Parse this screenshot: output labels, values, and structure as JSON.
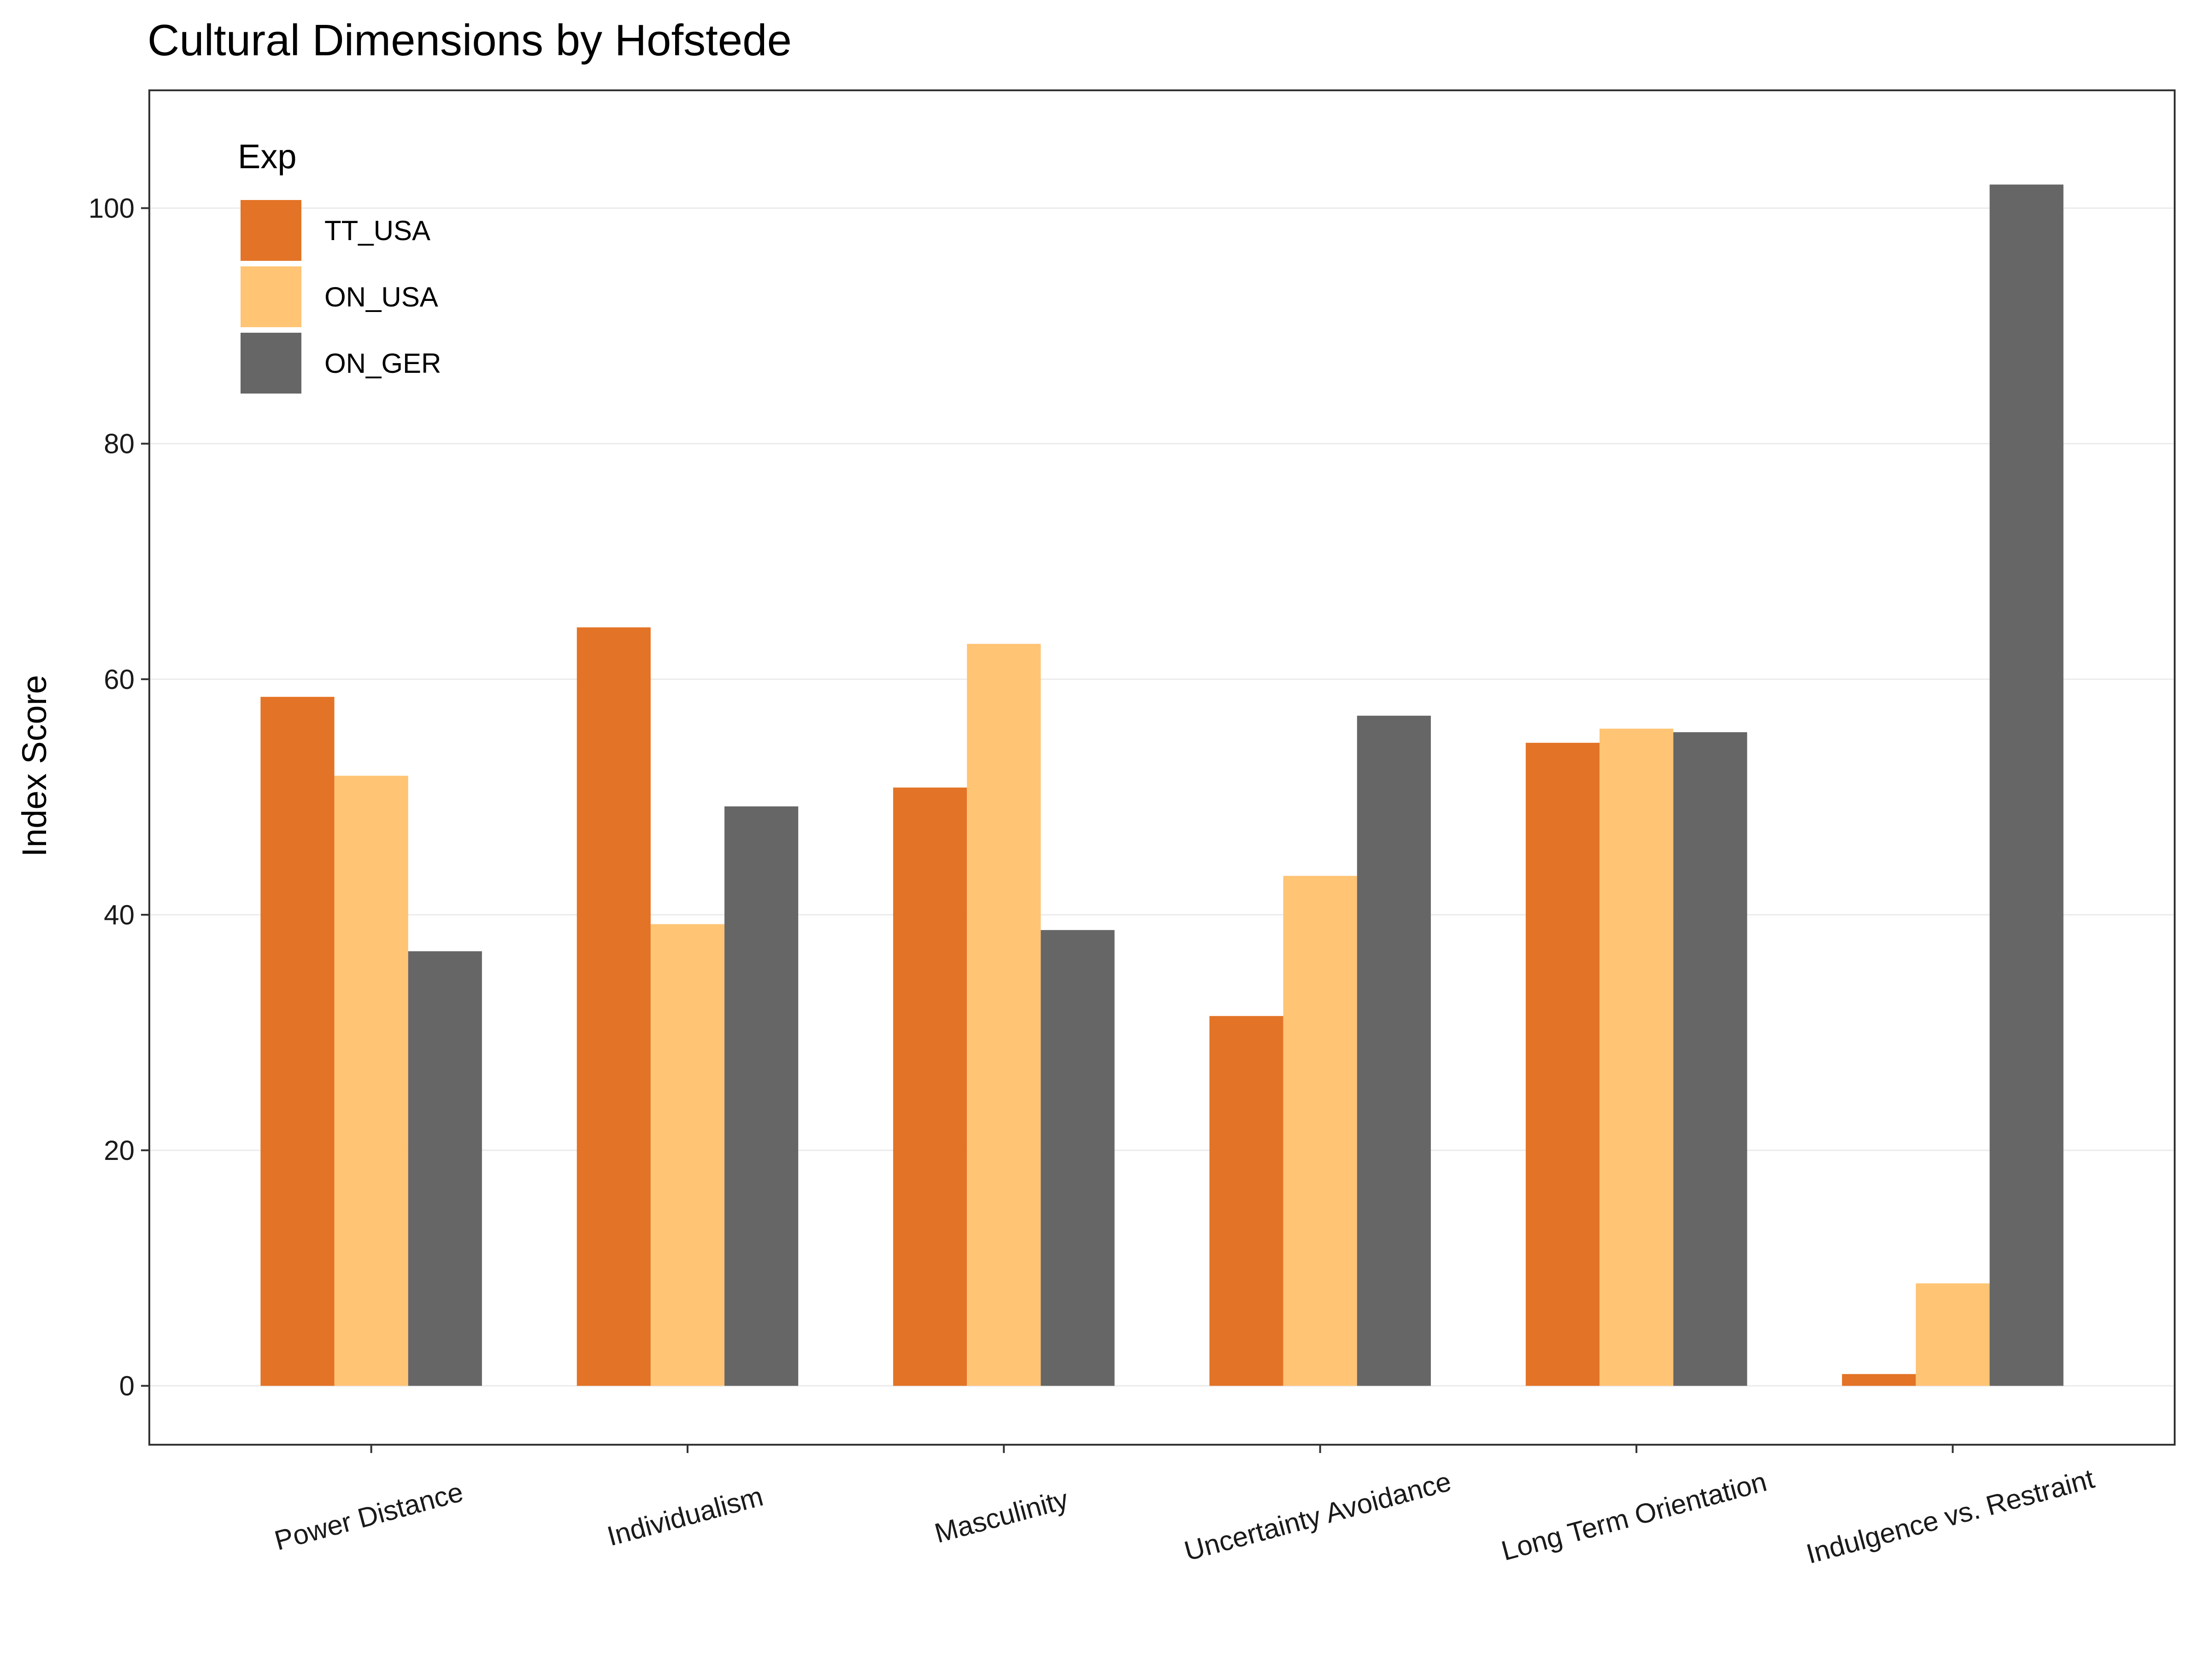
{
  "chart_data": {
    "type": "bar",
    "title": "Cultural Dimensions by Hofstede",
    "xlabel": "",
    "ylabel": "Index Score",
    "categories": [
      "Power Distance",
      "Individualism",
      "Masculinity",
      "Uncertainty Avoidance",
      "Long Term Orientation",
      "Indulgence vs. Restraint"
    ],
    "series": [
      {
        "name": "TT_USA",
        "color": "#E37326",
        "values": [
          58.5,
          64.4,
          50.8,
          31.4,
          54.6,
          1.0
        ]
      },
      {
        "name": "ON_USA",
        "color": "#FFC474",
        "values": [
          51.8,
          39.2,
          63.0,
          43.3,
          55.8,
          8.7
        ]
      },
      {
        "name": "ON_GER",
        "color": "#666666",
        "values": [
          36.9,
          49.2,
          38.7,
          56.9,
          55.5,
          102.0
        ]
      }
    ],
    "legend": {
      "title": "Exp",
      "position": "top-left"
    },
    "ylim": [
      -5,
      110
    ],
    "yticks": [
      0,
      20,
      40,
      60,
      80,
      100
    ],
    "grid": true
  }
}
